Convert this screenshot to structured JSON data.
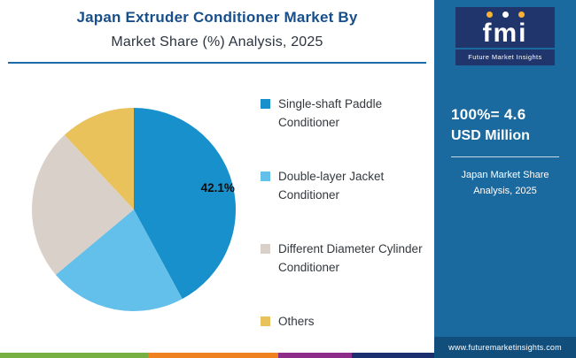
{
  "header": {
    "title_line1": "Japan Extruder Conditioner Market By",
    "title_line2": "Market Share (%) Analysis, 2025"
  },
  "chart_data": {
    "type": "pie",
    "title": "Japan Extruder Conditioner Market By Market Share (%) Analysis, 2025",
    "labels": [
      "Single-shaft Paddle Conditioner",
      "Double-layer Jacket Conditioner",
      "Different Diameter Cylinder Conditioner",
      "Others"
    ],
    "values": [
      42.1,
      21.8,
      24.2,
      11.9
    ],
    "colors": [
      "#1790cb",
      "#63c0ea",
      "#d8d0c9",
      "#e9c25c"
    ],
    "data_labels": [
      "42.1%",
      "",
      "",
      ""
    ],
    "legend_position": "right",
    "total_note": "100%= 4.6 USD Million"
  },
  "sidebar": {
    "logo_text": "fmi",
    "logo_caption": "Future Market Insights",
    "stat_line1": "100%= 4.6",
    "stat_line2": "USD Million",
    "caption": "Japan Market Share Analysis, 2025",
    "website": "www.futuremarketinsights.com"
  },
  "colors": {
    "accent_rule": "#1b6ca8",
    "title_blue": "#174f8c",
    "sidebar_bg": "#1a699f",
    "sidebar_footer_bg": "#124e7c",
    "footer_strip": [
      {
        "color": "#76b043",
        "width": 34
      },
      {
        "color": "#f0811f",
        "width": 30
      },
      {
        "color": "#8e2c8a",
        "width": 17
      },
      {
        "color": "#1b2f6e",
        "width": 19
      }
    ]
  }
}
